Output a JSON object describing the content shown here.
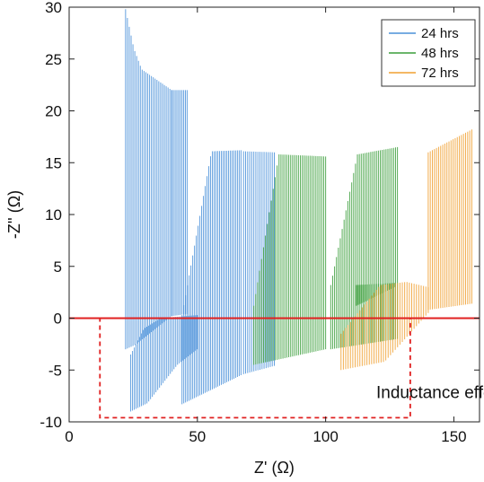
{
  "chart_data": {
    "type": "line",
    "xlabel": "Z' (Ω)",
    "ylabel": "-Z'' (Ω)",
    "xlim": [
      0,
      160
    ],
    "ylim": [
      -10,
      30
    ],
    "xticks": [
      0,
      50,
      100,
      150
    ],
    "yticks": [
      -10,
      -5,
      0,
      5,
      10,
      15,
      20,
      25,
      30
    ],
    "xtick_labels": [
      "0",
      "50",
      "100",
      "150"
    ],
    "ytick_labels": [
      "-10",
      "-5",
      "0",
      "5",
      "10",
      "15",
      "20",
      "25",
      "30"
    ],
    "grid": false,
    "legend_position": "top-right",
    "series": [
      {
        "name": "24 hrs",
        "color": "#4a90d9",
        "segments": [
          {
            "x0": 22,
            "x1": 40,
            "n": 26,
            "bottom": [
              [
                0,
                -3.0
              ],
              [
                0.2,
                -2.6
              ],
              [
                1,
                0.2
              ]
            ],
            "top": [
              [
                0,
                29.8
              ],
              [
                0.18,
                26.0
              ],
              [
                0.35,
                24.0
              ],
              [
                1,
                22.0
              ]
            ]
          },
          {
            "x0": 40,
            "x1": 46,
            "n": 10,
            "bottom": [
              [
                0,
                0.2
              ],
              [
                1,
                0.4
              ]
            ],
            "top": [
              [
                0,
                22.0
              ],
              [
                1,
                22.0
              ]
            ]
          },
          {
            "x0": 24,
            "x1": 50,
            "n": 38,
            "bottom": [
              [
                0,
                -9.0
              ],
              [
                0.25,
                -8.2
              ],
              [
                0.7,
                -4.5
              ],
              [
                1,
                -3.0
              ]
            ],
            "top": [
              [
                0,
                -3.5
              ],
              [
                0.2,
                -1.0
              ],
              [
                0.45,
                0.0
              ],
              [
                1,
                0.3
              ]
            ]
          },
          {
            "x0": 44,
            "x1": 67,
            "n": 34,
            "bottom": [
              [
                0,
                -8.3
              ],
              [
                1,
                -5.5
              ]
            ],
            "top": [
              [
                0,
                0.3
              ],
              [
                0.5,
                16.1
              ],
              [
                1,
                16.2
              ]
            ]
          },
          {
            "x0": 68,
            "x1": 80,
            "n": 16,
            "bottom": [
              [
                0,
                -5.4
              ],
              [
                1,
                -4.6
              ]
            ],
            "top": [
              [
                0,
                16.1
              ],
              [
                1,
                16.0
              ]
            ]
          }
        ]
      },
      {
        "name": "48 hrs",
        "color": "#3a9e3a",
        "segments": [
          {
            "x0": 72,
            "x1": 100,
            "n": 38,
            "bottom": [
              [
                0,
                -4.5
              ],
              [
                1,
                -3.0
              ]
            ],
            "top": [
              [
                0,
                1.2
              ],
              [
                0.35,
                15.8
              ],
              [
                1,
                15.6
              ]
            ]
          },
          {
            "x0": 102,
            "x1": 128,
            "n": 36,
            "bottom": [
              [
                0,
                -3.0
              ],
              [
                1,
                -2.0
              ]
            ],
            "top": [
              [
                0,
                3.2
              ],
              [
                0.4,
                15.8
              ],
              [
                1,
                16.5
              ]
            ]
          },
          {
            "x0": 112,
            "x1": 127,
            "n": 22,
            "bottom": [
              [
                0,
                1.2
              ],
              [
                1,
                3.0
              ]
            ],
            "top": [
              [
                0,
                3.2
              ],
              [
                1,
                3.4
              ]
            ]
          }
        ]
      },
      {
        "name": "72 hrs",
        "color": "#f0a030",
        "segments": [
          {
            "x0": 106,
            "x1": 140,
            "n": 38,
            "bottom": [
              [
                0,
                -5.0
              ],
              [
                0.5,
                -4.2
              ],
              [
                1,
                0.5
              ]
            ],
            "top": [
              [
                0,
                -1.5
              ],
              [
                0.45,
                3.2
              ],
              [
                0.75,
                3.5
              ],
              [
                1,
                3.0
              ]
            ]
          },
          {
            "x0": 140,
            "x1": 157,
            "n": 22,
            "bottom": [
              [
                0,
                0.8
              ],
              [
                1,
                1.4
              ]
            ],
            "top": [
              [
                0,
                16.0
              ],
              [
                1,
                18.2
              ]
            ]
          }
        ]
      }
    ],
    "reference_line": {
      "y": 0,
      "color": "#e02020"
    },
    "annotation_box": {
      "x0": 12,
      "x1": 133,
      "y0": -9.6,
      "y1": 0,
      "color": "#e02020"
    },
    "annotation": {
      "text": "Inductance effect",
      "x": 145,
      "y": -7.7
    }
  }
}
